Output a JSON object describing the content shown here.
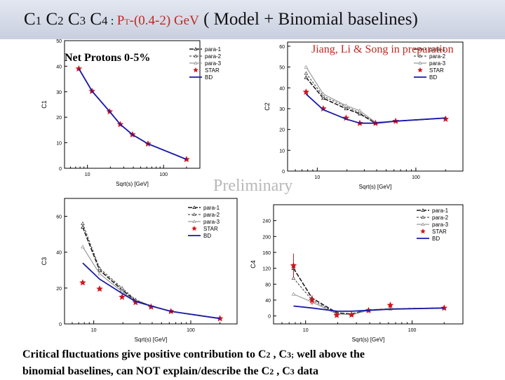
{
  "title": {
    "p1": "C",
    "s1": "1",
    "p2": " C",
    "s2": "2",
    "p3": " C",
    "s3": "3",
    "p4": " C",
    "s4": "4",
    "colon": " : ",
    "pt": "P",
    "pt_sub": "T",
    "range": "-(0.4-2) GeV",
    "models": "  ( Model + Binomial baselines)"
  },
  "credit": "Jiang, Li & Song in preparation",
  "panel_label": "Net Protons  0-5%",
  "watermark": "Preliminary",
  "footer": {
    "l1a": "Critical fluctuations give positive contribution to C",
    "l1s1": "2",
    "l1b": " , C",
    "l1s2": "3;",
    "l1c": "  well above the",
    "l2a": "binomial baselines,  can NOT explain/describe the C",
    "l2s1": "2",
    "l2b": " , C",
    "l2s2": "3",
    "l2c": " data"
  },
  "colors": {
    "para1": "#1a1a1a",
    "para2": "#555555",
    "para3": "#9a9a9a",
    "star": "#d0141c",
    "bd": "#1a1aa8"
  },
  "chart_data": [
    {
      "type": "line",
      "id": "c1",
      "ylabel": "C1",
      "xlabel": "Sqrt(s) [GeV]",
      "xscale": "log",
      "xlim": [
        5,
        300
      ],
      "ylim": [
        0,
        50
      ],
      "yticks": [
        0,
        10,
        20,
        30,
        40,
        50
      ],
      "yticklabels": [
        "0",
        "10",
        "20",
        "30",
        "40",
        "50"
      ],
      "xticks": [
        10,
        100
      ],
      "xticklabels": [
        "10",
        "100"
      ],
      "legend": [
        "para-1",
        "para-2",
        "para-3",
        "STAR",
        "BD"
      ],
      "legend_position": "top-right",
      "series": [
        {
          "name": "para-1",
          "x": [
            7.7,
            11.5,
            19.6,
            27,
            39,
            62.4,
            200
          ],
          "values": [
            39,
            30.2,
            22.2,
            17.2,
            13.2,
            9.6,
            3.5
          ]
        },
        {
          "name": "para-2",
          "x": [
            7.7,
            11.5,
            19.6,
            27,
            39,
            62.4,
            200
          ],
          "values": [
            39,
            30.2,
            22.2,
            17.2,
            13.2,
            9.6,
            3.5
          ]
        },
        {
          "name": "para-3",
          "x": [
            7.7,
            11.5,
            19.6,
            27,
            39,
            62.4,
            200
          ],
          "values": [
            39,
            30.2,
            22.2,
            17.2,
            13.2,
            9.6,
            3.5
          ]
        },
        {
          "name": "STAR",
          "x": [
            7.7,
            11.5,
            19.6,
            27,
            39,
            62.4,
            200
          ],
          "values": [
            39,
            30.2,
            22.2,
            17.2,
            13.2,
            9.6,
            3.5
          ]
        },
        {
          "name": "BD",
          "x": [
            7.7,
            11.5,
            19.6,
            27,
            39,
            62.4,
            200
          ],
          "values": [
            39,
            30.2,
            22.2,
            17.2,
            13.2,
            9.6,
            3.5
          ]
        }
      ]
    },
    {
      "type": "line",
      "id": "c2",
      "ylabel": "C2",
      "xlabel": "Sqrt(s) [GeV]",
      "xscale": "log",
      "xlim": [
        5,
        300
      ],
      "ylim": [
        0,
        62
      ],
      "yticks": [
        0,
        10,
        20,
        30,
        40,
        50,
        60
      ],
      "yticklabels": [
        "0",
        "10",
        "20",
        "30",
        "40",
        "50",
        "60"
      ],
      "xticks": [
        10,
        100
      ],
      "xticklabels": [
        "10",
        "100"
      ],
      "legend": [
        "para-1",
        "para-2",
        "para-3",
        "STAR",
        "BD"
      ],
      "legend_position": "top-right",
      "series": [
        {
          "name": "para-1",
          "x": [
            7.7,
            11.5,
            19.6,
            27,
            39,
            62.4,
            200
          ],
          "values": [
            45,
            35,
            30,
            27.5,
            23,
            24,
            25.5
          ]
        },
        {
          "name": "para-2",
          "x": [
            7.7,
            11.5,
            19.6,
            27,
            39,
            62.4,
            200
          ],
          "values": [
            47,
            36,
            31,
            28,
            23.2,
            24,
            25.5
          ]
        },
        {
          "name": "para-3",
          "x": [
            7.7,
            11.5,
            19.6,
            27,
            39,
            62.4,
            200
          ],
          "values": [
            50,
            37,
            31.5,
            29,
            23.5,
            24,
            25.5
          ]
        },
        {
          "name": "STAR",
          "x": [
            7.7,
            11.5,
            19.6,
            27,
            39,
            62.4,
            200
          ],
          "values": [
            38,
            30,
            25.5,
            23,
            23,
            24,
            25
          ]
        },
        {
          "name": "BD",
          "x": [
            7.7,
            11.5,
            19.6,
            27,
            39,
            62.4,
            200
          ],
          "values": [
            37,
            29.5,
            25,
            23,
            23,
            24,
            25.5
          ]
        }
      ]
    },
    {
      "type": "line",
      "id": "c3",
      "ylabel": "C3",
      "xlabel": "Sqrt(s) [GeV]",
      "xscale": "log",
      "xlim": [
        5,
        300
      ],
      "ylim": [
        0,
        70
      ],
      "yticks": [
        0,
        20,
        40,
        60
      ],
      "yticklabels": [
        "0",
        "20",
        "40",
        "60"
      ],
      "xticks": [
        10,
        100
      ],
      "xticklabels": [
        "10",
        "100"
      ],
      "legend": [
        "para-1",
        "para-2",
        "para-3",
        "STAR",
        "BD"
      ],
      "legend_position": "top-right",
      "series": [
        {
          "name": "para-1",
          "x": [
            7.7,
            11.5,
            19.6,
            27,
            39,
            62.4,
            200
          ],
          "values": [
            54,
            30,
            19,
            13,
            10,
            7,
            3
          ]
        },
        {
          "name": "para-2",
          "x": [
            7.7,
            11.5,
            19.6,
            27,
            39,
            62.4,
            200
          ],
          "values": [
            56,
            31,
            20,
            13.5,
            10,
            7,
            3
          ]
        },
        {
          "name": "para-3",
          "x": [
            7.7,
            11.5,
            19.6,
            27,
            39,
            62.4,
            200
          ],
          "values": [
            43,
            28,
            18,
            12.5,
            10,
            7,
            3
          ]
        },
        {
          "name": "STAR",
          "x": [
            7.7,
            11.5,
            19.6,
            27,
            39,
            62.4,
            200
          ],
          "values": [
            23,
            19.5,
            15,
            12,
            9.5,
            7,
            3
          ]
        },
        {
          "name": "BD",
          "x": [
            7.7,
            11.5,
            19.6,
            27,
            39,
            62.4,
            200
          ],
          "values": [
            34,
            25,
            17,
            12.5,
            10,
            7,
            3
          ]
        }
      ]
    },
    {
      "type": "line",
      "id": "c4",
      "ylabel": "C4",
      "xlabel": "Sqrt(s) [GeV]",
      "xscale": "log",
      "xlim": [
        5,
        300
      ],
      "ylim": [
        -20,
        280
      ],
      "yticks": [
        0,
        40,
        80,
        120,
        160,
        200,
        240
      ],
      "yticklabels": [
        "0",
        "40",
        "80",
        "120",
        "160",
        "200",
        "240"
      ],
      "xticks": [
        10,
        100
      ],
      "xticklabels": [
        "10",
        "100"
      ],
      "legend": [
        "para-1",
        "para-2",
        "para-3",
        "STAR",
        "BD"
      ],
      "legend_position": "top-right",
      "series": [
        {
          "name": "para-1",
          "x": [
            7.7,
            11.5,
            19.6,
            27,
            39,
            62.4,
            200
          ],
          "values": [
            120,
            45,
            8,
            5,
            15,
            18,
            20
          ]
        },
        {
          "name": "para-2",
          "x": [
            7.7,
            11.5,
            19.6,
            27,
            39,
            62.4,
            200
          ],
          "values": [
            95,
            40,
            6,
            4,
            15,
            18,
            20
          ]
        },
        {
          "name": "para-3",
          "x": [
            7.7,
            11.5,
            19.6,
            27,
            39,
            62.4,
            200
          ],
          "values": [
            55,
            35,
            5,
            3,
            14,
            18,
            20
          ]
        },
        {
          "name": "STAR",
          "x": [
            7.7,
            11.5,
            19.6,
            27,
            39,
            62.4,
            200
          ],
          "values": [
            127,
            40,
            2,
            3,
            14,
            27,
            20
          ],
          "errors": [
            30,
            12,
            5,
            5,
            5,
            8,
            4
          ]
        },
        {
          "name": "BD",
          "x": [
            7.7,
            11.5,
            19.6,
            27,
            39,
            62.4,
            200
          ],
          "values": [
            25,
            20,
            12,
            12,
            14,
            17,
            20
          ]
        }
      ]
    }
  ]
}
